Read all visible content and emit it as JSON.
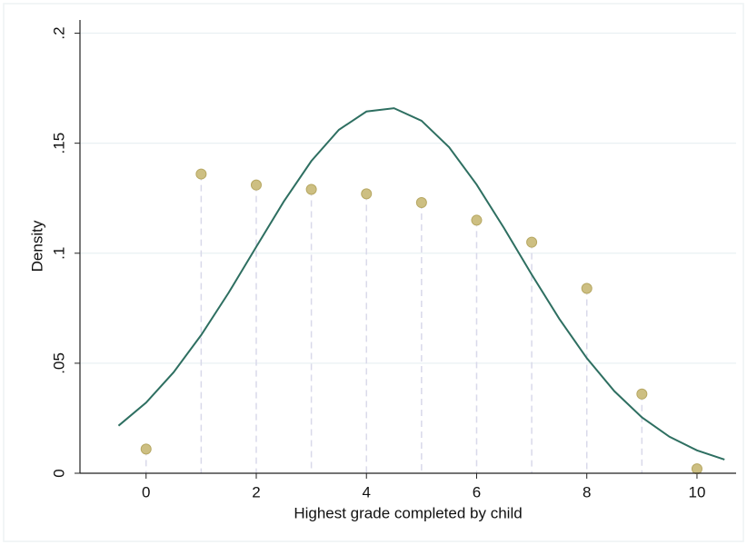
{
  "chart_data": {
    "type": "scatter",
    "x_label": "Highest grade completed by child",
    "y_label": "Density",
    "xlim": [
      -1.2,
      10.71
    ],
    "ylim": [
      0,
      0.206
    ],
    "xticks": [
      0,
      2,
      4,
      6,
      8,
      10
    ],
    "yticks": [
      0,
      {
        "value": 0.05,
        "label": ".05"
      },
      {
        "value": 0.1,
        "label": ".1"
      },
      {
        "value": 0.15,
        "label": ".15"
      },
      {
        "value": 0.2,
        "label": ".2"
      }
    ],
    "grid": true,
    "series": [
      {
        "type": "scatter",
        "color": "#cdbf82",
        "dropline": true,
        "x": [
          0,
          1,
          2,
          3,
          4,
          5,
          6,
          7,
          8,
          9,
          10
        ],
        "values": [
          0.011,
          0.136,
          0.131,
          0.129,
          0.127,
          0.123,
          0.115,
          0.105,
          0.084,
          0.036,
          0.002
        ]
      },
      {
        "type": "line",
        "color": "#2e6f61",
        "x": [
          -0.5,
          0,
          0.5,
          1,
          1.5,
          2,
          2.5,
          3,
          3.5,
          4,
          4.5,
          5,
          5.5,
          6,
          6.5,
          7,
          7.5,
          8,
          8.5,
          9,
          9.5,
          10,
          10.5
        ],
        "values": [
          0.0216,
          0.0321,
          0.0459,
          0.0628,
          0.0821,
          0.1029,
          0.1235,
          0.1419,
          0.1561,
          0.1644,
          0.1659,
          0.1602,
          0.1482,
          0.1312,
          0.1113,
          0.0903,
          0.0702,
          0.0523,
          0.0373,
          0.0254,
          0.0166,
          0.0104,
          0.0062
        ]
      }
    ]
  }
}
